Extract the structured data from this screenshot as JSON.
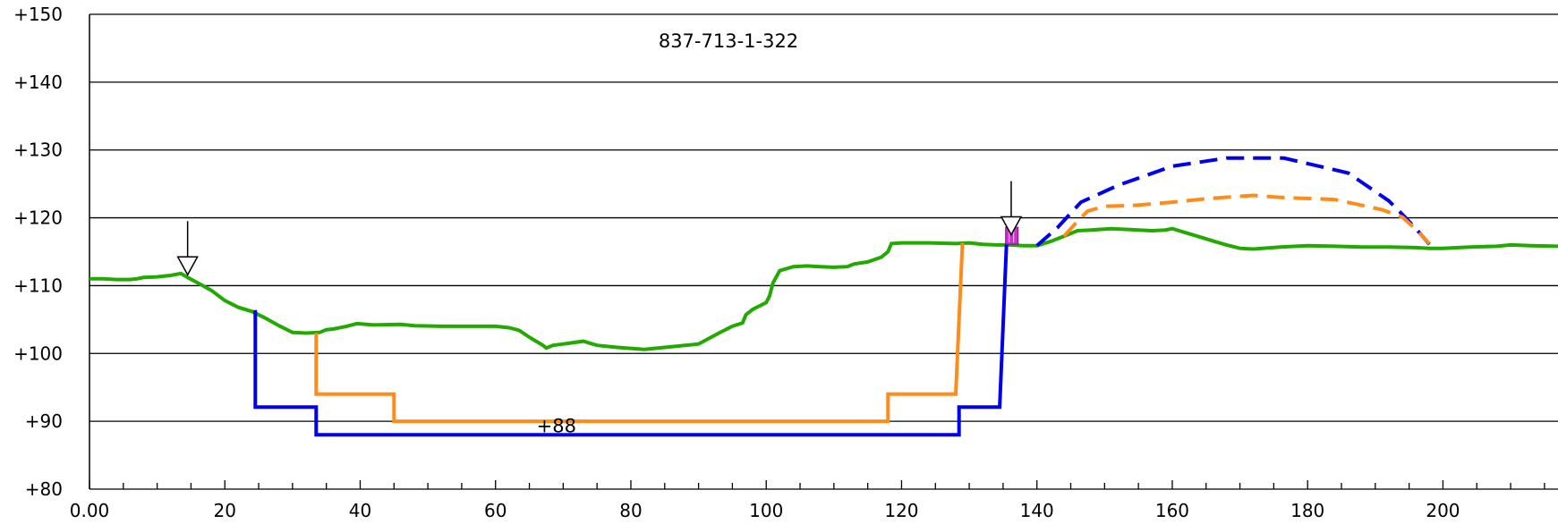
{
  "chart_data": {
    "type": "line",
    "title": "837-713-1-322",
    "xlabel": "",
    "ylabel": "",
    "xlim": [
      0,
      217
    ],
    "ylim": [
      80,
      150
    ],
    "grid": true,
    "x_ticks": [
      0,
      20,
      40,
      60,
      80,
      100,
      120,
      140,
      160,
      180,
      200
    ],
    "x_tick_labels": [
      "0.00",
      "20",
      "40",
      "60",
      "80",
      "100",
      "120",
      "140",
      "160",
      "180",
      "200"
    ],
    "x_minor_step": 5,
    "y_ticks": [
      80,
      90,
      100,
      110,
      120,
      130,
      140,
      150
    ],
    "y_tick_labels": [
      "+80",
      "+90",
      "+100",
      "+110",
      "+120",
      "+130",
      "+140",
      "+150"
    ],
    "series": [
      {
        "color": "#22aa00",
        "style": "solid",
        "points": [
          [
            0,
            111
          ],
          [
            2,
            111
          ],
          [
            4,
            110.9
          ],
          [
            6,
            110.9
          ],
          [
            7,
            111
          ],
          [
            8,
            111.2
          ],
          [
            10,
            111.3
          ],
          [
            12,
            111.5
          ],
          [
            13.5,
            111.8
          ],
          [
            14.5,
            111.2
          ],
          [
            16,
            110.4
          ],
          [
            18,
            109.3
          ],
          [
            20,
            107.8
          ],
          [
            22,
            106.8
          ],
          [
            24,
            106.2
          ],
          [
            26,
            105.2
          ],
          [
            28,
            104.1
          ],
          [
            30,
            103.1
          ],
          [
            32,
            103
          ],
          [
            34,
            103.1
          ],
          [
            35,
            103.5
          ],
          [
            36,
            103.6
          ],
          [
            38,
            104
          ],
          [
            39.5,
            104.4
          ],
          [
            42,
            104.2
          ],
          [
            46,
            104.3
          ],
          [
            48,
            104.1
          ],
          [
            52,
            104
          ],
          [
            56,
            104
          ],
          [
            60,
            104
          ],
          [
            62,
            103.8
          ],
          [
            63.5,
            103.4
          ],
          [
            65,
            102.4
          ],
          [
            67,
            101.2
          ],
          [
            67.5,
            100.8
          ],
          [
            68.5,
            101.2
          ],
          [
            70,
            101.4
          ],
          [
            73,
            101.8
          ],
          [
            74,
            101.5
          ],
          [
            75,
            101.2
          ],
          [
            78,
            100.9
          ],
          [
            82,
            100.6
          ],
          [
            84,
            100.8
          ],
          [
            88,
            101.2
          ],
          [
            90,
            101.4
          ],
          [
            93,
            103
          ],
          [
            95,
            104
          ],
          [
            96.5,
            104.5
          ],
          [
            97,
            105.7
          ],
          [
            98,
            106.5
          ],
          [
            100,
            107.5
          ],
          [
            100.5,
            108.5
          ],
          [
            101,
            110.4
          ],
          [
            102,
            112.2
          ],
          [
            104,
            112.8
          ],
          [
            106,
            112.9
          ],
          [
            108,
            112.8
          ],
          [
            110,
            112.7
          ],
          [
            112,
            112.8
          ],
          [
            113,
            113.2
          ],
          [
            115,
            113.5
          ],
          [
            117,
            114.2
          ],
          [
            118,
            115
          ],
          [
            118.5,
            116.2
          ],
          [
            120,
            116.3
          ],
          [
            124,
            116.3
          ],
          [
            128,
            116.2
          ],
          [
            130,
            116.3
          ],
          [
            132,
            116.1
          ],
          [
            134,
            116
          ],
          [
            136,
            116
          ],
          [
            138,
            115.9
          ],
          [
            140,
            115.9
          ],
          [
            142,
            116.5
          ],
          [
            144,
            117.3
          ],
          [
            146,
            118.1
          ],
          [
            148,
            118.2
          ],
          [
            151,
            118.4
          ],
          [
            155,
            118.2
          ],
          [
            157,
            118.1
          ],
          [
            159,
            118.2
          ],
          [
            160,
            118.4
          ],
          [
            162,
            117.8
          ],
          [
            164,
            117.2
          ],
          [
            166,
            116.6
          ],
          [
            168,
            116
          ],
          [
            170,
            115.5
          ],
          [
            172,
            115.4
          ],
          [
            176,
            115.7
          ],
          [
            180,
            115.9
          ],
          [
            184,
            115.8
          ],
          [
            188,
            115.7
          ],
          [
            192,
            115.7
          ],
          [
            196,
            115.6
          ],
          [
            198,
            115.5
          ],
          [
            200,
            115.5
          ],
          [
            204,
            115.7
          ],
          [
            208,
            115.8
          ],
          [
            210,
            116
          ],
          [
            213,
            115.9
          ],
          [
            217,
            115.8
          ]
        ]
      },
      {
        "color": "#0000ee",
        "style": "solid",
        "points": [
          [
            24.5,
            106.4
          ],
          [
            24.5,
            92.1
          ],
          [
            33.5,
            92.1
          ],
          [
            33.5,
            88
          ],
          [
            128.5,
            88
          ],
          [
            128.5,
            92.1
          ],
          [
            134.5,
            92.1
          ],
          [
            135.5,
            116.1
          ]
        ]
      },
      {
        "color": "#ff8c1a",
        "style": "solid",
        "points": [
          [
            33.5,
            103
          ],
          [
            33.5,
            94
          ],
          [
            45,
            94
          ],
          [
            45,
            90
          ],
          [
            118,
            90
          ],
          [
            118,
            94
          ],
          [
            128,
            94
          ],
          [
            129,
            116.3
          ]
        ]
      },
      {
        "color": "#0000ee",
        "style": "dashed",
        "points": [
          [
            140,
            115.9
          ],
          [
            143,
            118.5
          ],
          [
            146.5,
            122.3
          ],
          [
            152,
            124.8
          ],
          [
            160,
            127.6
          ],
          [
            168,
            128.8
          ],
          [
            172,
            128.8
          ],
          [
            176.5,
            128.8
          ],
          [
            186,
            126.6
          ],
          [
            192,
            122.5
          ],
          [
            194,
            120.5
          ],
          [
            196,
            118.4
          ],
          [
            198,
            116.1
          ]
        ]
      },
      {
        "color": "#ff8c1a",
        "style": "dashed",
        "points": [
          [
            144,
            117.3
          ],
          [
            146,
            119.5
          ],
          [
            147.5,
            121
          ],
          [
            150,
            121.7
          ],
          [
            154,
            121.8
          ],
          [
            160,
            122.3
          ],
          [
            166,
            122.9
          ],
          [
            172,
            123.3
          ],
          [
            176,
            123
          ],
          [
            184,
            122.7
          ],
          [
            191,
            121.2
          ],
          [
            194,
            120.1
          ],
          [
            196,
            118.3
          ],
          [
            198,
            116.2
          ]
        ]
      }
    ],
    "markers": [
      {
        "type": "arrow-triangle",
        "x": 14.5,
        "y": 111.6
      },
      {
        "type": "arrow-triangle",
        "x": 136.2,
        "y": 117.5
      }
    ],
    "structure": {
      "color": "#cc33cc",
      "x": 136.3,
      "y_bottom": 116.1,
      "y_top": 118.6
    },
    "annotations": [
      {
        "text": "+88",
        "x": 69,
        "y": 89.3
      }
    ]
  }
}
